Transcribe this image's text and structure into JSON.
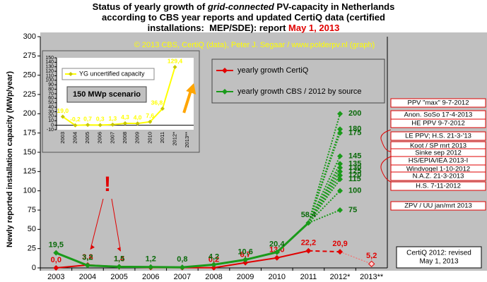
{
  "chart_data": [
    {
      "type": "line",
      "title": [
        [
          "Status of yearly growth of ",
          "grid-connected",
          " PV-capacity in Netherlands"
        ],
        [
          "according to CBS year reports and updated CertiQ data (certified"
        ],
        [
          "installations:  MEP/SDE): report ",
          "May 1, 2013"
        ]
      ],
      "ylabel": "Newly reported installation capacity (MWp/year)",
      "copyright": "© 2013 CBS, CertiQ (data), Peter J. Segaar / www.polderpv.nl (graph)",
      "note": [
        "CertiQ 2012:  revised",
        "May 1, 2013"
      ],
      "exclamation": "!",
      "categories": [
        "2003",
        "2004",
        "2005",
        "2006",
        "2007",
        "2008",
        "2009",
        "2010",
        "2011",
        "2012*",
        "2013**"
      ],
      "ylim": [
        0,
        300
      ],
      "yticks": [
        0,
        25,
        50,
        75,
        100,
        125,
        150,
        175,
        200,
        225,
        250,
        275,
        300
      ],
      "series": [
        {
          "name": "yearly growth CertiQ",
          "color": "#e00000",
          "values": [
            0,
            3.8,
            1.4,
            0.5,
            0.3,
            0.2,
            6.7,
            13.0,
            22.2,
            20.9,
            5.2
          ],
          "value_labels": [
            "0,0",
            "3,8",
            "1,4",
            null,
            null,
            "0,2",
            "6,7",
            "13,0",
            "22,2",
            "20,9",
            "5,2"
          ]
        },
        {
          "name": "yearly growth CBS / 2012 by source",
          "color": "#1a9a1a",
          "values": [
            19.5,
            3.2,
            1.5,
            1.2,
            0.8,
            4.2,
            10.6,
            20.4,
            58.4,
            null,
            null
          ],
          "value_labels": [
            "19,5",
            "3,2",
            "1,5",
            "1,2",
            "0,8",
            "4,2",
            "10,6",
            "20,4",
            "58,4",
            null,
            null
          ]
        }
      ],
      "scenarios": {
        "values": [
          200,
          180,
          175,
          145,
          135,
          130,
          125,
          120,
          115,
          100,
          75
        ],
        "sources": [
          "PPV \"max\" 9-7-2012",
          "Anon. SoSo 17-4-2013",
          "HE PPV 9-7-2012",
          "LE PPV; H.S. 21-3-'13",
          "Koot / SP mrt 2013",
          "Sinke sep 2012",
          "HS/EPIA/IEA 2013-I",
          "Windvogel 1-10-2012",
          "N.A.Z. 21-3-2013",
          "H.S. 7-11-2012",
          "ZPV / UU jan/mrt 2013"
        ]
      }
    },
    {
      "type": "line",
      "annotation": "150 MWp scenario",
      "categories": [
        "2003",
        "2004",
        "2005",
        "2006",
        "2007",
        "2008",
        "2009",
        "2010",
        "2011",
        "2012*",
        "2013**"
      ],
      "ylim": [
        -10,
        150
      ],
      "yticks": [
        -10,
        0,
        10,
        20,
        30,
        40,
        50,
        60,
        70,
        80,
        90,
        100,
        110,
        120,
        130,
        140,
        150
      ],
      "series": [
        {
          "name": "YG uncertified capacity",
          "color": "#ffff00",
          "values": [
            19.0,
            -0.2,
            0.7,
            0.3,
            1.3,
            4.3,
            4.0,
            7.6,
            36.8,
            129.4,
            null
          ],
          "value_labels": [
            "19,0",
            "-0,2",
            "0,7",
            "0,3",
            "1,3",
            "4,3",
            "4,0",
            "7,6",
            "36,8",
            "129,4",
            null
          ]
        }
      ]
    }
  ]
}
